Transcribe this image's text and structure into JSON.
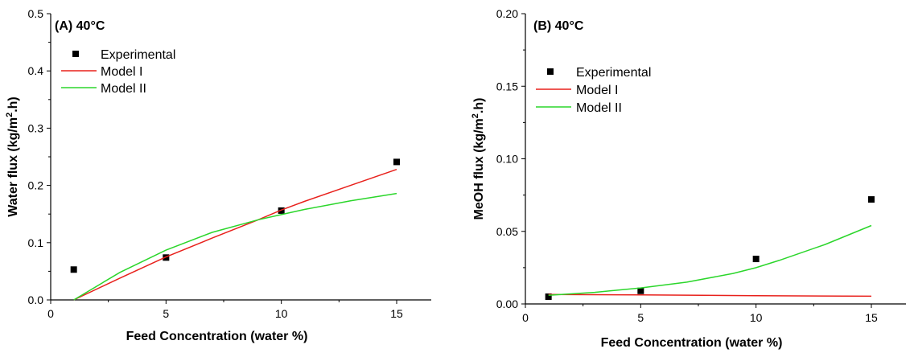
{
  "chart_data": [
    {
      "type": "scatter",
      "title": "(A) 40°C",
      "xlabel": "Feed Concentration (water %)",
      "ylabel": "Water flux (kg/m².h)",
      "ylabel_parts": [
        "Water flux (kg/m",
        "2",
        ".h)"
      ],
      "xlim": [
        0,
        16.5
      ],
      "ylim": [
        0,
        0.5
      ],
      "xticks": [
        0,
        5,
        10,
        15
      ],
      "yticks": [
        0.0,
        0.1,
        0.2,
        0.3,
        0.4,
        0.5
      ],
      "ytick_labels": [
        "0.0",
        "0.1",
        "0.2",
        "0.3",
        "0.4",
        "0.5"
      ],
      "legend": [
        "Experimental",
        "Model I",
        "Model II"
      ],
      "legend_position": "top-left",
      "series": [
        {
          "name": "Experimental",
          "kind": "points",
          "color": "#000000",
          "x": [
            1,
            5,
            10,
            15
          ],
          "y": [
            0.053,
            0.074,
            0.156,
            0.241
          ]
        },
        {
          "name": "Model I",
          "kind": "line",
          "color": "#e8211c",
          "x": [
            1,
            3,
            5,
            7,
            9,
            10,
            11,
            13,
            15
          ],
          "y": [
            0.0,
            0.038,
            0.075,
            0.108,
            0.14,
            0.157,
            0.172,
            0.2,
            0.228
          ]
        },
        {
          "name": "Model II",
          "kind": "line",
          "color": "#2bd62b",
          "x": [
            1,
            3,
            5,
            7,
            9,
            10,
            11,
            13,
            15
          ],
          "y": [
            0.0,
            0.048,
            0.087,
            0.118,
            0.14,
            0.149,
            0.158,
            0.173,
            0.186
          ]
        }
      ]
    },
    {
      "type": "scatter",
      "title": "(B) 40°C",
      "xlabel": "Feed Concentration (water %)",
      "ylabel": "MeOH flux (kg/m².h)",
      "ylabel_parts": [
        "MeOH flux (kg/m",
        "2",
        ".h)"
      ],
      "xlim": [
        0,
        16.5
      ],
      "ylim": [
        0,
        0.2
      ],
      "xticks": [
        0,
        5,
        10,
        15
      ],
      "yticks": [
        0.0,
        0.05,
        0.1,
        0.15,
        0.2
      ],
      "ytick_labels": [
        "0.00",
        "0.05",
        "0.10",
        "0.15",
        "0.20"
      ],
      "legend": [
        "Experimental",
        "Model I",
        "Model II"
      ],
      "legend_position": "top-left",
      "series": [
        {
          "name": "Experimental",
          "kind": "points",
          "color": "#000000",
          "x": [
            1,
            5,
            10,
            15
          ],
          "y": [
            0.005,
            0.009,
            0.031,
            0.072
          ]
        },
        {
          "name": "Model I",
          "kind": "line",
          "color": "#e8211c",
          "x": [
            1,
            5,
            10,
            15
          ],
          "y": [
            0.0065,
            0.0062,
            0.0057,
            0.0053
          ]
        },
        {
          "name": "Model II",
          "kind": "line",
          "color": "#2bd62b",
          "x": [
            1,
            3,
            5,
            7,
            9,
            10,
            11,
            13,
            15
          ],
          "y": [
            0.006,
            0.008,
            0.011,
            0.015,
            0.021,
            0.025,
            0.03,
            0.041,
            0.054
          ]
        }
      ]
    }
  ]
}
